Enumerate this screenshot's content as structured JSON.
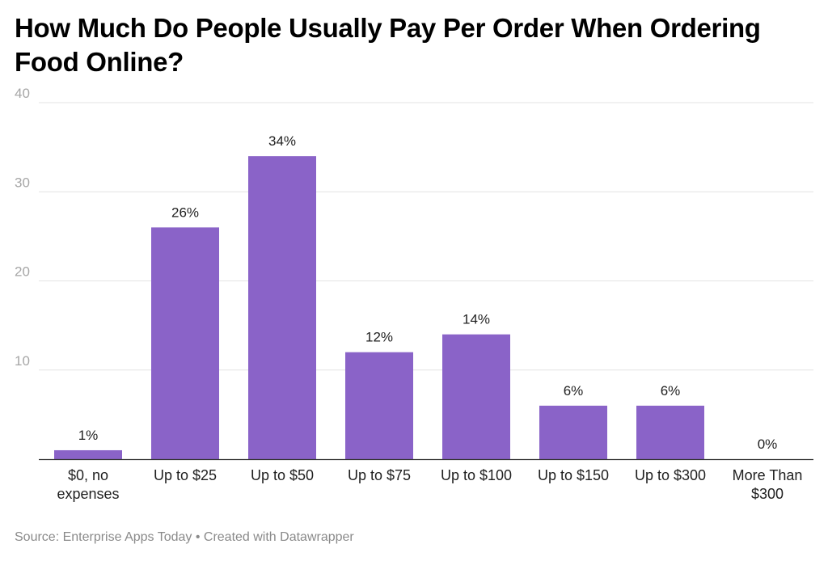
{
  "chart_data": {
    "type": "bar",
    "title": "How Much Do People Usually Pay Per Order When Ordering Food Online?",
    "categories": [
      "$0, no expenses",
      "Up to $25",
      "Up to $50",
      "Up to $75",
      "Up to $100",
      "Up to $150",
      "Up to $300",
      "More Than $300"
    ],
    "category_lines": [
      [
        "$0, no",
        "expenses"
      ],
      [
        "Up to $25"
      ],
      [
        "Up to $50"
      ],
      [
        "Up to $75"
      ],
      [
        "Up to $100"
      ],
      [
        "Up to $150"
      ],
      [
        "Up to $300"
      ],
      [
        "More Than",
        "$300"
      ]
    ],
    "values": [
      1,
      26,
      34,
      12,
      14,
      6,
      6,
      0
    ],
    "data_labels": [
      "1%",
      "26%",
      "34%",
      "12%",
      "14%",
      "6%",
      "6%",
      "0%"
    ],
    "ylim": [
      0,
      40
    ],
    "yticks": [
      10,
      20,
      30,
      40
    ],
    "ytick_labels": [
      "10",
      "20",
      "30",
      "40"
    ],
    "xlabel": "",
    "ylabel": "",
    "grid": true,
    "bar_color": "#8a63c8"
  },
  "footer": {
    "source_text": "Source: Enterprise Apps Today • Created with Datawrapper"
  }
}
